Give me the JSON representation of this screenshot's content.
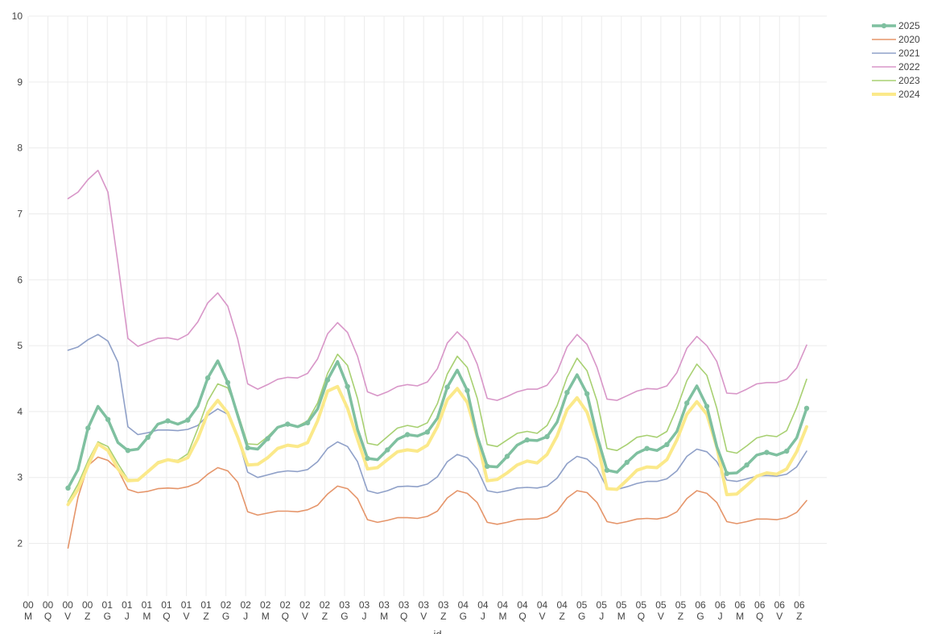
{
  "chart_data": {
    "type": "line",
    "xlabel": "id",
    "ylabel": "",
    "ylim": [
      1.2,
      10
    ],
    "yticks": [
      2,
      3,
      4,
      5,
      6,
      7,
      8,
      9,
      10
    ],
    "grid": true,
    "legend_position": "top-right",
    "x_ticks": [
      [
        "00",
        "M"
      ],
      [
        "00",
        "Q"
      ],
      [
        "00",
        "V"
      ],
      [
        "00",
        "Z"
      ],
      [
        "01",
        "G"
      ],
      [
        "01",
        "J"
      ],
      [
        "01",
        "M"
      ],
      [
        "01",
        "Q"
      ],
      [
        "01",
        "V"
      ],
      [
        "01",
        "Z"
      ],
      [
        "02",
        "G"
      ],
      [
        "02",
        "J"
      ],
      [
        "02",
        "M"
      ],
      [
        "02",
        "Q"
      ],
      [
        "02",
        "V"
      ],
      [
        "02",
        "Z"
      ],
      [
        "03",
        "G"
      ],
      [
        "03",
        "J"
      ],
      [
        "03",
        "M"
      ],
      [
        "03",
        "Q"
      ],
      [
        "03",
        "V"
      ],
      [
        "03",
        "Z"
      ],
      [
        "04",
        "G"
      ],
      [
        "04",
        "J"
      ],
      [
        "04",
        "M"
      ],
      [
        "04",
        "Q"
      ],
      [
        "04",
        "V"
      ],
      [
        "04",
        "Z"
      ],
      [
        "05",
        "G"
      ],
      [
        "05",
        "J"
      ],
      [
        "05",
        "M"
      ],
      [
        "05",
        "Q"
      ],
      [
        "05",
        "V"
      ],
      [
        "05",
        "Z"
      ],
      [
        "06",
        "G"
      ],
      [
        "06",
        "J"
      ],
      [
        "06",
        "M"
      ],
      [
        "06",
        "Q"
      ],
      [
        "06",
        "V"
      ],
      [
        "06",
        "Z"
      ]
    ],
    "series": [
      {
        "name": "2020",
        "color": "#e5956a",
        "width": 1.6,
        "markers": false,
        "values": [
          1.93,
          2.7,
          3.18,
          3.31,
          3.26,
          3.12,
          2.82,
          2.77,
          2.79,
          2.83,
          2.84,
          2.83,
          2.86,
          2.92,
          3.05,
          3.15,
          3.1,
          2.93,
          2.48,
          2.43,
          2.46,
          2.49,
          2.49,
          2.48,
          2.51,
          2.58,
          2.75,
          2.87,
          2.83,
          2.68,
          2.36,
          2.32,
          2.35,
          2.39,
          2.39,
          2.38,
          2.41,
          2.49,
          2.69,
          2.8,
          2.76,
          2.62,
          2.32,
          2.29,
          2.32,
          2.36,
          2.37,
          2.37,
          2.4,
          2.49,
          2.69,
          2.8,
          2.77,
          2.62,
          2.33,
          2.3,
          2.33,
          2.37,
          2.38,
          2.37,
          2.4,
          2.48,
          2.68,
          2.8,
          2.76,
          2.62,
          2.33,
          2.3,
          2.33,
          2.37,
          2.37,
          2.36,
          2.39,
          2.47,
          2.65
        ]
      },
      {
        "name": "2021",
        "color": "#8fa0c8",
        "width": 1.6,
        "markers": false,
        "values": [
          4.93,
          4.98,
          5.09,
          5.17,
          5.07,
          4.75,
          3.77,
          3.65,
          3.68,
          3.72,
          3.72,
          3.71,
          3.73,
          3.79,
          3.94,
          4.04,
          3.96,
          3.61,
          3.08,
          3.0,
          3.04,
          3.08,
          3.1,
          3.09,
          3.12,
          3.24,
          3.44,
          3.54,
          3.47,
          3.24,
          2.8,
          2.76,
          2.8,
          2.86,
          2.87,
          2.86,
          2.9,
          3.01,
          3.24,
          3.35,
          3.3,
          3.13,
          2.8,
          2.77,
          2.8,
          2.84,
          2.85,
          2.84,
          2.87,
          2.99,
          3.21,
          3.32,
          3.28,
          3.14,
          2.84,
          2.82,
          2.86,
          2.91,
          2.94,
          2.94,
          2.98,
          3.1,
          3.32,
          3.43,
          3.39,
          3.24,
          2.96,
          2.94,
          2.98,
          3.02,
          3.03,
          3.02,
          3.05,
          3.16,
          3.4
        ]
      },
      {
        "name": "2022",
        "color": "#d896c8",
        "width": 1.6,
        "markers": false,
        "values": [
          7.23,
          7.33,
          7.52,
          7.66,
          7.33,
          6.25,
          5.11,
          4.99,
          5.05,
          5.11,
          5.12,
          5.09,
          5.17,
          5.36,
          5.65,
          5.8,
          5.6,
          5.1,
          4.42,
          4.34,
          4.41,
          4.49,
          4.52,
          4.51,
          4.58,
          4.8,
          5.18,
          5.35,
          5.2,
          4.84,
          4.3,
          4.24,
          4.3,
          4.38,
          4.41,
          4.39,
          4.45,
          4.65,
          5.04,
          5.21,
          5.06,
          4.72,
          4.2,
          4.17,
          4.23,
          4.3,
          4.34,
          4.34,
          4.4,
          4.6,
          4.98,
          5.17,
          5.02,
          4.67,
          4.19,
          4.17,
          4.24,
          4.31,
          4.35,
          4.34,
          4.39,
          4.59,
          4.96,
          5.14,
          5.0,
          4.76,
          4.28,
          4.27,
          4.34,
          4.42,
          4.44,
          4.44,
          4.49,
          4.66,
          5.01
        ]
      },
      {
        "name": "2023",
        "color": "#a8d072",
        "width": 1.6,
        "markers": false,
        "values": [
          2.63,
          2.9,
          3.25,
          3.54,
          3.47,
          3.21,
          2.97,
          2.97,
          3.1,
          3.24,
          3.28,
          3.26,
          3.36,
          3.74,
          4.16,
          4.42,
          4.36,
          3.98,
          3.51,
          3.5,
          3.62,
          3.77,
          3.8,
          3.78,
          3.86,
          4.13,
          4.58,
          4.87,
          4.7,
          4.2,
          3.52,
          3.49,
          3.62,
          3.75,
          3.79,
          3.76,
          3.83,
          4.12,
          4.57,
          4.84,
          4.67,
          4.2,
          3.5,
          3.47,
          3.57,
          3.67,
          3.7,
          3.67,
          3.79,
          4.09,
          4.52,
          4.81,
          4.62,
          4.16,
          3.44,
          3.41,
          3.5,
          3.61,
          3.64,
          3.61,
          3.7,
          4.05,
          4.47,
          4.72,
          4.55,
          4.05,
          3.4,
          3.37,
          3.48,
          3.6,
          3.64,
          3.62,
          3.71,
          4.06,
          4.49
        ]
      },
      {
        "name": "2024",
        "color": "#fbe98a",
        "width": 4,
        "markers": false,
        "values": [
          2.59,
          2.82,
          3.18,
          3.51,
          3.41,
          3.13,
          2.95,
          2.96,
          3.09,
          3.22,
          3.27,
          3.24,
          3.3,
          3.59,
          3.98,
          4.17,
          3.98,
          3.61,
          3.19,
          3.2,
          3.3,
          3.44,
          3.49,
          3.47,
          3.53,
          3.86,
          4.31,
          4.38,
          4.05,
          3.58,
          3.13,
          3.15,
          3.27,
          3.39,
          3.42,
          3.4,
          3.49,
          3.77,
          4.18,
          4.35,
          4.14,
          3.62,
          2.95,
          2.97,
          3.07,
          3.19,
          3.25,
          3.22,
          3.35,
          3.63,
          4.03,
          4.21,
          3.99,
          3.52,
          2.83,
          2.82,
          2.96,
          3.11,
          3.16,
          3.15,
          3.27,
          3.57,
          3.96,
          4.15,
          3.96,
          3.46,
          2.74,
          2.75,
          2.88,
          3.02,
          3.07,
          3.05,
          3.13,
          3.39,
          3.77
        ]
      },
      {
        "name": "2025",
        "color": "#7fc0a0",
        "width": 3.5,
        "markers": true,
        "values": [
          2.84,
          3.12,
          3.75,
          4.08,
          3.88,
          3.53,
          3.41,
          3.43,
          3.61,
          3.81,
          3.86,
          3.81,
          3.87,
          4.08,
          4.51,
          4.77,
          4.44,
          3.94,
          3.45,
          3.43,
          3.59,
          3.76,
          3.81,
          3.77,
          3.83,
          4.04,
          4.48,
          4.76,
          4.38,
          3.73,
          3.29,
          3.27,
          3.42,
          3.58,
          3.65,
          3.63,
          3.69,
          3.9,
          4.37,
          4.63,
          4.32,
          3.63,
          3.17,
          3.16,
          3.32,
          3.49,
          3.57,
          3.56,
          3.62,
          3.84,
          4.29,
          4.56,
          4.27,
          3.63,
          3.11,
          3.08,
          3.23,
          3.37,
          3.44,
          3.41,
          3.5,
          3.7,
          4.13,
          4.39,
          4.08,
          3.47,
          3.06,
          3.07,
          3.19,
          3.34,
          3.38,
          3.34,
          3.4,
          3.6,
          4.05
        ]
      }
    ],
    "legend_order": [
      "2025",
      "2020",
      "2021",
      "2022",
      "2023",
      "2024"
    ]
  }
}
